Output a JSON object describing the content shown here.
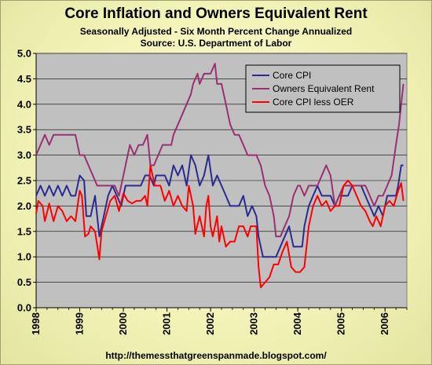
{
  "chart_data": {
    "type": "line",
    "title": "Core Inflation and Owners Equivalent Rent",
    "subtitle": "Seasonally Adjusted - Six Month Percent Change Annualized",
    "source": "Source: U.S. Department of Labor",
    "footer": "http://themessthatgreenspanmade.blogspot.com/",
    "ylim": [
      0,
      5
    ],
    "yticks": [
      "0.0",
      "0.5",
      "1.0",
      "1.5",
      "2.0",
      "2.5",
      "3.0",
      "3.5",
      "4.0",
      "4.5",
      "5.0"
    ],
    "xlim": [
      1998.0,
      2006.5
    ],
    "xticks": [
      "1998",
      "1999",
      "2000",
      "2001",
      "2002",
      "2003",
      "2004",
      "2005",
      "2006"
    ],
    "grid": true,
    "legend_position": "top-right",
    "series": [
      {
        "name": "Core CPI",
        "color": "#2a2a90",
        "points": [
          [
            1998.0,
            2.2
          ],
          [
            1998.1,
            2.4
          ],
          [
            1998.2,
            2.2
          ],
          [
            1998.3,
            2.4
          ],
          [
            1998.4,
            2.2
          ],
          [
            1998.5,
            2.4
          ],
          [
            1998.6,
            2.2
          ],
          [
            1998.7,
            2.4
          ],
          [
            1998.8,
            2.2
          ],
          [
            1998.9,
            2.2
          ],
          [
            1999.0,
            2.6
          ],
          [
            1999.1,
            2.5
          ],
          [
            1999.15,
            1.8
          ],
          [
            1999.25,
            1.8
          ],
          [
            1999.35,
            2.2
          ],
          [
            1999.45,
            1.4
          ],
          [
            1999.55,
            1.8
          ],
          [
            1999.65,
            2.2
          ],
          [
            1999.75,
            2.4
          ],
          [
            1999.85,
            2.2
          ],
          [
            1999.95,
            2.0
          ],
          [
            2000.05,
            2.4
          ],
          [
            2000.2,
            2.4
          ],
          [
            2000.3,
            2.4
          ],
          [
            2000.4,
            2.4
          ],
          [
            2000.5,
            2.6
          ],
          [
            2000.6,
            2.6
          ],
          [
            2000.7,
            2.4
          ],
          [
            2000.75,
            2.6
          ],
          [
            2000.85,
            2.6
          ],
          [
            2000.95,
            2.6
          ],
          [
            2001.05,
            2.4
          ],
          [
            2001.15,
            2.8
          ],
          [
            2001.25,
            2.6
          ],
          [
            2001.35,
            2.8
          ],
          [
            2001.45,
            2.4
          ],
          [
            2001.55,
            3.0
          ],
          [
            2001.65,
            2.8
          ],
          [
            2001.75,
            2.4
          ],
          [
            2001.85,
            2.6
          ],
          [
            2001.95,
            3.0
          ],
          [
            2002.05,
            2.4
          ],
          [
            2002.15,
            2.6
          ],
          [
            2002.25,
            2.4
          ],
          [
            2002.35,
            2.2
          ],
          [
            2002.45,
            2.0
          ],
          [
            2002.55,
            2.0
          ],
          [
            2002.65,
            2.0
          ],
          [
            2002.75,
            2.2
          ],
          [
            2002.85,
            1.8
          ],
          [
            2002.95,
            2.0
          ],
          [
            2003.05,
            1.8
          ],
          [
            2003.1,
            1.4
          ],
          [
            2003.2,
            1.0
          ],
          [
            2003.3,
            1.0
          ],
          [
            2003.4,
            1.0
          ],
          [
            2003.5,
            1.0
          ],
          [
            2003.6,
            1.2
          ],
          [
            2003.7,
            1.4
          ],
          [
            2003.8,
            1.6
          ],
          [
            2003.9,
            1.2
          ],
          [
            2004.0,
            1.2
          ],
          [
            2004.1,
            1.2
          ],
          [
            2004.15,
            1.6
          ],
          [
            2004.25,
            2.0
          ],
          [
            2004.35,
            2.2
          ],
          [
            2004.45,
            2.4
          ],
          [
            2004.55,
            2.2
          ],
          [
            2004.65,
            2.2
          ],
          [
            2004.75,
            2.2
          ],
          [
            2004.85,
            2.0
          ],
          [
            2004.95,
            2.2
          ],
          [
            2005.05,
            2.2
          ],
          [
            2005.15,
            2.2
          ],
          [
            2005.25,
            2.4
          ],
          [
            2005.35,
            2.4
          ],
          [
            2005.45,
            2.4
          ],
          [
            2005.55,
            2.2
          ],
          [
            2005.65,
            2.0
          ],
          [
            2005.75,
            1.8
          ],
          [
            2005.85,
            2.0
          ],
          [
            2005.95,
            1.8
          ],
          [
            2006.05,
            2.2
          ],
          [
            2006.15,
            2.2
          ],
          [
            2006.25,
            2.2
          ],
          [
            2006.3,
            2.4
          ],
          [
            2006.37,
            2.8
          ],
          [
            2006.42,
            2.8
          ]
        ]
      },
      {
        "name": "Owners Equivalent Rent",
        "color": "#9a3070",
        "points": [
          [
            1998.0,
            3.0
          ],
          [
            1998.1,
            3.2
          ],
          [
            1998.2,
            3.4
          ],
          [
            1998.3,
            3.2
          ],
          [
            1998.4,
            3.4
          ],
          [
            1998.6,
            3.4
          ],
          [
            1998.8,
            3.4
          ],
          [
            1998.9,
            3.4
          ],
          [
            1999.0,
            3.0
          ],
          [
            1999.1,
            3.0
          ],
          [
            1999.2,
            2.8
          ],
          [
            1999.3,
            2.6
          ],
          [
            1999.4,
            2.4
          ],
          [
            1999.5,
            2.4
          ],
          [
            1999.6,
            2.4
          ],
          [
            1999.7,
            2.4
          ],
          [
            1999.8,
            2.4
          ],
          [
            1999.9,
            2.2
          ],
          [
            2000.0,
            2.6
          ],
          [
            2000.1,
            3.0
          ],
          [
            2000.15,
            3.2
          ],
          [
            2000.25,
            3.0
          ],
          [
            2000.35,
            3.2
          ],
          [
            2000.45,
            3.2
          ],
          [
            2000.55,
            3.4
          ],
          [
            2000.62,
            2.8
          ],
          [
            2000.7,
            2.8
          ],
          [
            2000.8,
            3.0
          ],
          [
            2000.9,
            3.2
          ],
          [
            2001.0,
            3.2
          ],
          [
            2001.1,
            3.2
          ],
          [
            2001.15,
            3.4
          ],
          [
            2001.25,
            3.6
          ],
          [
            2001.35,
            3.8
          ],
          [
            2001.45,
            4.0
          ],
          [
            2001.55,
            4.2
          ],
          [
            2001.6,
            4.4
          ],
          [
            2001.7,
            4.6
          ],
          [
            2001.75,
            4.4
          ],
          [
            2001.85,
            4.6
          ],
          [
            2001.95,
            4.6
          ],
          [
            2002.0,
            4.6
          ],
          [
            2002.05,
            4.7
          ],
          [
            2002.1,
            4.8
          ],
          [
            2002.15,
            4.4
          ],
          [
            2002.25,
            4.4
          ],
          [
            2002.3,
            4.2
          ],
          [
            2002.35,
            4.0
          ],
          [
            2002.45,
            3.6
          ],
          [
            2002.55,
            3.4
          ],
          [
            2002.65,
            3.4
          ],
          [
            2002.75,
            3.2
          ],
          [
            2002.85,
            3.0
          ],
          [
            2002.95,
            3.0
          ],
          [
            2003.05,
            3.0
          ],
          [
            2003.15,
            2.8
          ],
          [
            2003.25,
            2.4
          ],
          [
            2003.35,
            2.2
          ],
          [
            2003.45,
            1.8
          ],
          [
            2003.5,
            1.4
          ],
          [
            2003.6,
            1.4
          ],
          [
            2003.7,
            1.6
          ],
          [
            2003.8,
            1.8
          ],
          [
            2003.9,
            2.2
          ],
          [
            2004.0,
            2.4
          ],
          [
            2004.05,
            2.4
          ],
          [
            2004.15,
            2.2
          ],
          [
            2004.25,
            2.4
          ],
          [
            2004.35,
            2.4
          ],
          [
            2004.45,
            2.4
          ],
          [
            2004.55,
            2.6
          ],
          [
            2004.65,
            2.8
          ],
          [
            2004.75,
            2.6
          ],
          [
            2004.85,
            2.0
          ],
          [
            2004.95,
            2.2
          ],
          [
            2005.05,
            2.4
          ],
          [
            2005.15,
            2.4
          ],
          [
            2005.25,
            2.4
          ],
          [
            2005.35,
            2.4
          ],
          [
            2005.45,
            2.4
          ],
          [
            2005.55,
            2.4
          ],
          [
            2005.65,
            2.2
          ],
          [
            2005.75,
            2.0
          ],
          [
            2005.85,
            2.2
          ],
          [
            2005.95,
            2.2
          ],
          [
            2006.05,
            2.4
          ],
          [
            2006.15,
            2.6
          ],
          [
            2006.25,
            3.2
          ],
          [
            2006.32,
            3.6
          ],
          [
            2006.42,
            4.4
          ]
        ]
      },
      {
        "name": "Core CPI less OER",
        "color": "#ff0000",
        "points": [
          [
            1998.0,
            1.85
          ],
          [
            1998.05,
            2.1
          ],
          [
            1998.15,
            2.0
          ],
          [
            1998.2,
            1.7
          ],
          [
            1998.3,
            2.05
          ],
          [
            1998.4,
            1.7
          ],
          [
            1998.5,
            2.0
          ],
          [
            1998.6,
            1.9
          ],
          [
            1998.7,
            1.7
          ],
          [
            1998.8,
            1.8
          ],
          [
            1998.9,
            1.7
          ],
          [
            1999.0,
            2.3
          ],
          [
            1999.05,
            2.2
          ],
          [
            1999.12,
            1.4
          ],
          [
            1999.2,
            1.45
          ],
          [
            1999.25,
            1.6
          ],
          [
            1999.35,
            1.5
          ],
          [
            1999.45,
            0.95
          ],
          [
            1999.5,
            1.5
          ],
          [
            1999.6,
            1.8
          ],
          [
            1999.7,
            2.1
          ],
          [
            1999.8,
            2.2
          ],
          [
            1999.9,
            1.9
          ],
          [
            2000.0,
            2.25
          ],
          [
            2000.1,
            2.1
          ],
          [
            2000.2,
            2.05
          ],
          [
            2000.3,
            2.1
          ],
          [
            2000.4,
            2.1
          ],
          [
            2000.5,
            2.2
          ],
          [
            2000.55,
            2.0
          ],
          [
            2000.62,
            2.8
          ],
          [
            2000.72,
            2.4
          ],
          [
            2000.85,
            2.4
          ],
          [
            2000.95,
            2.1
          ],
          [
            2001.05,
            2.3
          ],
          [
            2001.15,
            2.0
          ],
          [
            2001.25,
            2.2
          ],
          [
            2001.35,
            2.0
          ],
          [
            2001.45,
            1.9
          ],
          [
            2001.5,
            2.4
          ],
          [
            2001.6,
            2.0
          ],
          [
            2001.65,
            1.45
          ],
          [
            2001.75,
            1.8
          ],
          [
            2001.85,
            1.4
          ],
          [
            2001.9,
            2.0
          ],
          [
            2001.95,
            2.2
          ],
          [
            2002.0,
            1.6
          ],
          [
            2002.05,
            1.4
          ],
          [
            2002.15,
            1.8
          ],
          [
            2002.2,
            1.3
          ],
          [
            2002.25,
            1.6
          ],
          [
            2002.35,
            1.2
          ],
          [
            2002.45,
            1.3
          ],
          [
            2002.55,
            1.3
          ],
          [
            2002.65,
            1.6
          ],
          [
            2002.75,
            1.6
          ],
          [
            2002.85,
            1.4
          ],
          [
            2002.92,
            1.6
          ],
          [
            2003.05,
            1.6
          ],
          [
            2003.1,
            0.8
          ],
          [
            2003.15,
            0.4
          ],
          [
            2003.25,
            0.5
          ],
          [
            2003.35,
            0.6
          ],
          [
            2003.45,
            0.85
          ],
          [
            2003.55,
            0.85
          ],
          [
            2003.65,
            1.1
          ],
          [
            2003.75,
            1.3
          ],
          [
            2003.85,
            0.8
          ],
          [
            2003.95,
            0.7
          ],
          [
            2004.05,
            0.7
          ],
          [
            2004.15,
            0.8
          ],
          [
            2004.25,
            1.6
          ],
          [
            2004.35,
            2.0
          ],
          [
            2004.45,
            2.2
          ],
          [
            2004.55,
            2.0
          ],
          [
            2004.65,
            2.1
          ],
          [
            2004.75,
            1.9
          ],
          [
            2004.85,
            2.0
          ],
          [
            2004.95,
            2.0
          ],
          [
            2005.05,
            2.4
          ],
          [
            2005.15,
            2.5
          ],
          [
            2005.25,
            2.4
          ],
          [
            2005.35,
            2.2
          ],
          [
            2005.45,
            2.0
          ],
          [
            2005.55,
            1.9
          ],
          [
            2005.65,
            1.7
          ],
          [
            2005.72,
            1.6
          ],
          [
            2005.8,
            1.8
          ],
          [
            2005.9,
            1.6
          ],
          [
            2006.0,
            2.0
          ],
          [
            2006.1,
            2.1
          ],
          [
            2006.2,
            2.0
          ],
          [
            2006.3,
            2.3
          ],
          [
            2006.37,
            2.45
          ],
          [
            2006.42,
            2.1
          ]
        ]
      }
    ]
  }
}
